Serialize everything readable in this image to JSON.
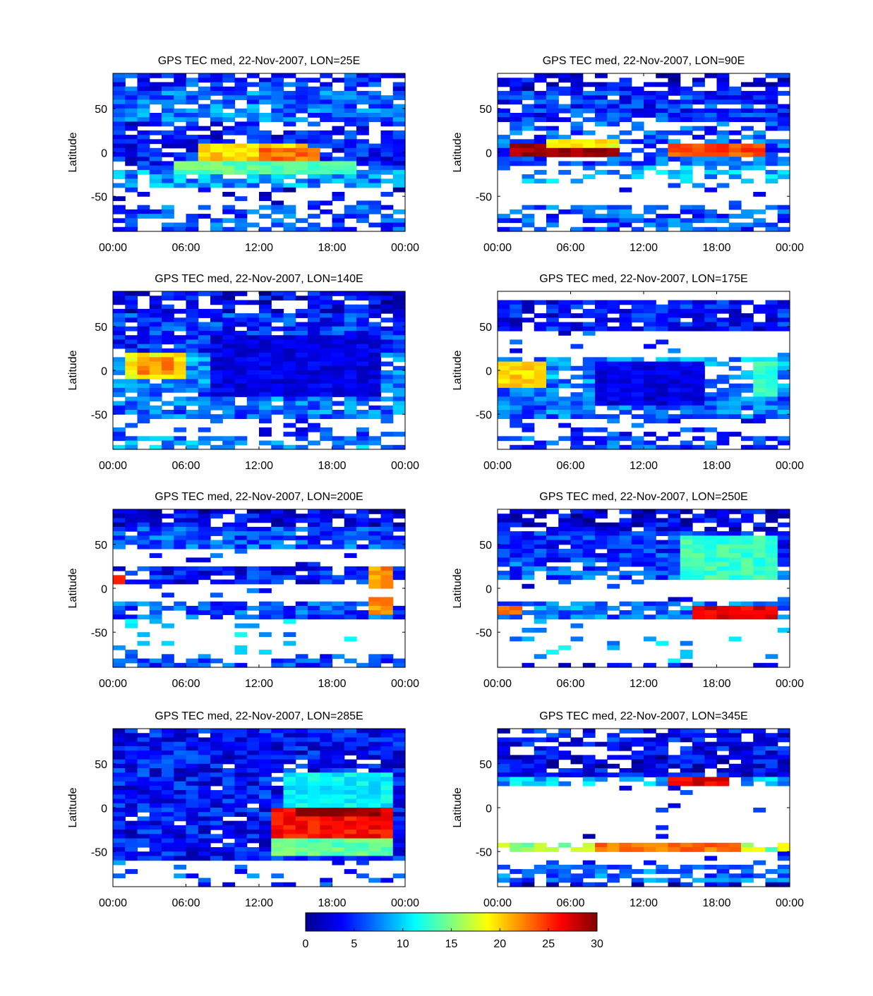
{
  "figure": {
    "colorbar": {
      "ticks": [
        "0",
        "5",
        "10",
        "15",
        "20",
        "25",
        "30"
      ],
      "min": 0,
      "max": 30,
      "colormap": "jet"
    }
  },
  "chart_data": [
    {
      "type": "heatmap",
      "title": "GPS TEC med, 22-Nov-2007, LON=25E",
      "ylabel": "Latitude",
      "xticks": [
        "00:00",
        "06:00",
        "12:00",
        "18:00",
        "00:00"
      ],
      "yticks": [
        "50",
        "0",
        "-50"
      ],
      "xlim_hours": [
        0,
        24
      ],
      "ylim": [
        -90,
        90
      ],
      "clim": [
        0,
        30
      ],
      "bands": [
        {
          "lat": [
            70,
            90
          ],
          "value": 5,
          "coverage": 0.8
        },
        {
          "lat": [
            35,
            70
          ],
          "value": 7,
          "coverage": 0.85
        },
        {
          "lat": [
            15,
            35
          ],
          "value": 4,
          "coverage": 0.7
        },
        {
          "lat": [
            -20,
            15
          ],
          "value": 4,
          "coverage": 0.9
        },
        {
          "lat": [
            -40,
            -20
          ],
          "value": 8,
          "coverage": 0.85
        },
        {
          "lat": [
            -60,
            -40
          ],
          "value": 3,
          "coverage": 0.2
        },
        {
          "lat": [
            -90,
            -60
          ],
          "value": 6,
          "coverage": 0.6
        }
      ],
      "features": [
        {
          "t": [
            7,
            16
          ],
          "lat": [
            -10,
            12
          ],
          "value": 20
        },
        {
          "t": [
            12,
            17
          ],
          "lat": [
            -10,
            5
          ],
          "value": 23
        },
        {
          "t": [
            5,
            20
          ],
          "lat": [
            -25,
            -10
          ],
          "value": 14
        }
      ]
    },
    {
      "type": "heatmap",
      "title": "GPS TEC med, 22-Nov-2007, LON=90E",
      "ylabel": "Latitude",
      "xticks": [
        "00:00",
        "06:00",
        "12:00",
        "18:00",
        "00:00"
      ],
      "yticks": [
        "50",
        "0",
        "-50"
      ],
      "xlim_hours": [
        0,
        24
      ],
      "ylim": [
        -90,
        90
      ],
      "clim": [
        0,
        30
      ],
      "bands": [
        {
          "lat": [
            70,
            90
          ],
          "value": 3,
          "coverage": 0.55
        },
        {
          "lat": [
            35,
            70
          ],
          "value": 5,
          "coverage": 0.85
        },
        {
          "lat": [
            15,
            35
          ],
          "value": 6,
          "coverage": 0.45
        },
        {
          "lat": [
            -15,
            15
          ],
          "value": 6,
          "coverage": 0.85
        },
        {
          "lat": [
            -35,
            -15
          ],
          "value": 9,
          "coverage": 0.5
        },
        {
          "lat": [
            -60,
            -35
          ],
          "value": 5,
          "coverage": 0.08
        },
        {
          "lat": [
            -90,
            -60
          ],
          "value": 6,
          "coverage": 0.65
        }
      ],
      "features": [
        {
          "t": [
            1,
            10
          ],
          "lat": [
            -5,
            12
          ],
          "value": 29
        },
        {
          "t": [
            14,
            22
          ],
          "lat": [
            -5,
            8
          ],
          "value": 24
        },
        {
          "t": [
            4,
            10
          ],
          "lat": [
            5,
            15
          ],
          "value": 19
        }
      ]
    },
    {
      "type": "heatmap",
      "title": "GPS TEC med, 22-Nov-2007, LON=140E",
      "ylabel": "Latitude",
      "xticks": [
        "00:00",
        "06:00",
        "12:00",
        "18:00",
        "00:00"
      ],
      "yticks": [
        "50",
        "0",
        "-50"
      ],
      "xlim_hours": [
        0,
        24
      ],
      "ylim": [
        -90,
        90
      ],
      "clim": [
        0,
        30
      ],
      "bands": [
        {
          "lat": [
            65,
            90
          ],
          "value": 3,
          "coverage": 0.75
        },
        {
          "lat": [
            20,
            65
          ],
          "value": 5,
          "coverage": 0.9
        },
        {
          "lat": [
            -25,
            20
          ],
          "value": 8,
          "coverage": 0.85
        },
        {
          "lat": [
            -55,
            -25
          ],
          "value": 7,
          "coverage": 0.85
        },
        {
          "lat": [
            -75,
            -55
          ],
          "value": 5,
          "coverage": 0.25
        },
        {
          "lat": [
            -90,
            -75
          ],
          "value": 8,
          "coverage": 0.6
        }
      ],
      "features": [
        {
          "t": [
            1,
            6
          ],
          "lat": [
            -10,
            20
          ],
          "value": 19
        },
        {
          "t": [
            2,
            5
          ],
          "lat": [
            -5,
            15
          ],
          "value": 22
        },
        {
          "t": [
            8,
            22
          ],
          "lat": [
            -30,
            40
          ],
          "value": 3
        }
      ]
    },
    {
      "type": "heatmap",
      "title": "GPS TEC med, 22-Nov-2007, LON=175E",
      "ylabel": "Latitude",
      "xticks": [
        "00:00",
        "06:00",
        "12:00",
        "18:00",
        "00:00"
      ],
      "yticks": [
        "50",
        "0",
        "-50"
      ],
      "xlim_hours": [
        0,
        24
      ],
      "ylim": [
        -90,
        90
      ],
      "clim": [
        0,
        30
      ],
      "bands": [
        {
          "lat": [
            45,
            80
          ],
          "value": 4,
          "coverage": 0.85
        },
        {
          "lat": [
            15,
            45
          ],
          "value": 5,
          "coverage": 0.08
        },
        {
          "lat": [
            -15,
            15
          ],
          "value": 8,
          "coverage": 0.75
        },
        {
          "lat": [
            -55,
            -15
          ],
          "value": 7,
          "coverage": 0.9
        },
        {
          "lat": [
            -75,
            -55
          ],
          "value": 5,
          "coverage": 0.3
        },
        {
          "lat": [
            -90,
            -75
          ],
          "value": 6,
          "coverage": 0.55
        }
      ],
      "features": [
        {
          "t": [
            0,
            4
          ],
          "lat": [
            -20,
            10
          ],
          "value": 20
        },
        {
          "t": [
            8,
            17
          ],
          "lat": [
            -40,
            12
          ],
          "value": 3
        },
        {
          "t": [
            21,
            23
          ],
          "lat": [
            -30,
            10
          ],
          "value": 13
        }
      ]
    },
    {
      "type": "heatmap",
      "title": "GPS TEC med, 22-Nov-2007, LON=200E",
      "ylabel": "Latitude",
      "xticks": [
        "00:00",
        "06:00",
        "12:00",
        "18:00",
        "00:00"
      ],
      "yticks": [
        "50",
        "0",
        "-50"
      ],
      "xlim_hours": [
        0,
        24
      ],
      "ylim": [
        -90,
        90
      ],
      "clim": [
        0,
        30
      ],
      "bands": [
        {
          "lat": [
            70,
            90
          ],
          "value": 3,
          "coverage": 0.8
        },
        {
          "lat": [
            45,
            70
          ],
          "value": 6,
          "coverage": 0.9
        },
        {
          "lat": [
            25,
            45
          ],
          "value": 5,
          "coverage": 0.08
        },
        {
          "lat": [
            5,
            25
          ],
          "value": 4,
          "coverage": 0.85
        },
        {
          "lat": [
            -15,
            5
          ],
          "value": 5,
          "coverage": 0.1
        },
        {
          "lat": [
            -35,
            -15
          ],
          "value": 6,
          "coverage": 0.8
        },
        {
          "lat": [
            -75,
            -35
          ],
          "value": 9,
          "coverage": 0.1
        },
        {
          "lat": [
            -90,
            -75
          ],
          "value": 6,
          "coverage": 0.6
        }
      ],
      "features": [
        {
          "t": [
            21,
            23
          ],
          "lat": [
            0,
            25
          ],
          "value": 22
        },
        {
          "t": [
            21,
            23
          ],
          "lat": [
            -30,
            -10
          ],
          "value": 22
        },
        {
          "t": [
            0,
            1
          ],
          "lat": [
            5,
            15
          ],
          "value": 26
        }
      ]
    },
    {
      "type": "heatmap",
      "title": "GPS TEC med, 22-Nov-2007, LON=250E",
      "ylabel": "Latitude",
      "xticks": [
        "00:00",
        "06:00",
        "12:00",
        "18:00",
        "00:00"
      ],
      "yticks": [
        "50",
        "0",
        "-50"
      ],
      "xlim_hours": [
        0,
        24
      ],
      "ylim": [
        -90,
        90
      ],
      "clim": [
        0,
        30
      ],
      "bands": [
        {
          "lat": [
            65,
            90
          ],
          "value": 3,
          "coverage": 0.85
        },
        {
          "lat": [
            30,
            65
          ],
          "value": 5,
          "coverage": 0.95
        },
        {
          "lat": [
            10,
            30
          ],
          "value": 6,
          "coverage": 0.8
        },
        {
          "lat": [
            -15,
            10
          ],
          "value": 4,
          "coverage": 0.05
        },
        {
          "lat": [
            -35,
            -15
          ],
          "value": 7,
          "coverage": 0.75
        },
        {
          "lat": [
            -85,
            -35
          ],
          "value": 9,
          "coverage": 0.06
        },
        {
          "lat": [
            -90,
            -85
          ],
          "value": 4,
          "coverage": 0.5
        }
      ],
      "features": [
        {
          "t": [
            15,
            23
          ],
          "lat": [
            10,
            60
          ],
          "value": 13
        },
        {
          "t": [
            16,
            23
          ],
          "lat": [
            -35,
            -20
          ],
          "value": 27
        },
        {
          "t": [
            0,
            2
          ],
          "lat": [
            -30,
            -20
          ],
          "value": 24
        }
      ]
    },
    {
      "type": "heatmap",
      "title": "GPS TEC med, 22-Nov-2007, LON=285E",
      "ylabel": "Latitude",
      "xticks": [
        "00:00",
        "06:00",
        "12:00",
        "18:00",
        "00:00"
      ],
      "yticks": [
        "50",
        "0",
        "-50"
      ],
      "xlim_hours": [
        0,
        24
      ],
      "ylim": [
        -90,
        90
      ],
      "clim": [
        0,
        30
      ],
      "bands": [
        {
          "lat": [
            -60,
            90
          ],
          "value": 4,
          "coverage": 0.95
        },
        {
          "lat": [
            -90,
            -60
          ],
          "value": 6,
          "coverage": 0.2
        }
      ],
      "features": [
        {
          "t": [
            13,
            23
          ],
          "lat": [
            -35,
            0
          ],
          "value": 26
        },
        {
          "t": [
            15,
            22
          ],
          "lat": [
            -10,
            0
          ],
          "value": 30
        },
        {
          "t": [
            13,
            23
          ],
          "lat": [
            -55,
            -35
          ],
          "value": 14
        },
        {
          "t": [
            14,
            23
          ],
          "lat": [
            0,
            40
          ],
          "value": 11
        }
      ]
    },
    {
      "type": "heatmap",
      "title": "GPS TEC med, 22-Nov-2007, LON=345E",
      "ylabel": "Latitude",
      "xticks": [
        "00:00",
        "06:00",
        "12:00",
        "18:00",
        "00:00"
      ],
      "yticks": [
        "50",
        "0",
        "-50"
      ],
      "xlim_hours": [
        0,
        24
      ],
      "ylim": [
        -90,
        90
      ],
      "clim": [
        0,
        30
      ],
      "bands": [
        {
          "lat": [
            60,
            90
          ],
          "value": 4,
          "coverage": 0.7
        },
        {
          "lat": [
            35,
            60
          ],
          "value": 3,
          "coverage": 0.85
        },
        {
          "lat": [
            25,
            35
          ],
          "value": 9,
          "coverage": 0.8
        },
        {
          "lat": [
            -40,
            25
          ],
          "value": 4,
          "coverage": 0.06
        },
        {
          "lat": [
            -50,
            -40
          ],
          "value": 16,
          "coverage": 0.85
        },
        {
          "lat": [
            -65,
            -50
          ],
          "value": 5,
          "coverage": 0.1
        },
        {
          "lat": [
            -85,
            -65
          ],
          "value": 7,
          "coverage": 0.65
        },
        {
          "lat": [
            -90,
            -85
          ],
          "value": 3,
          "coverage": 0.6
        }
      ],
      "features": [
        {
          "t": [
            14,
            19
          ],
          "lat": [
            25,
            35
          ],
          "value": 27
        },
        {
          "t": [
            8,
            20
          ],
          "lat": [
            -50,
            -40
          ],
          "value": 23
        }
      ]
    }
  ]
}
